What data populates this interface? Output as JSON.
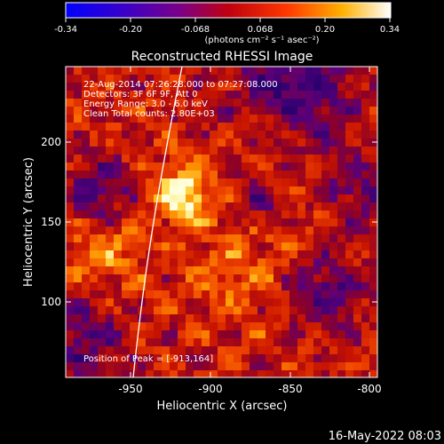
{
  "colorbar": {
    "ticks": [
      "-0.34",
      "-0.20",
      "-0.068",
      "0.068",
      "0.20",
      "0.34"
    ],
    "units": "(photons cm⁻² s⁻¹ asec⁻²)"
  },
  "plot": {
    "title": "Reconstructed RHESSI Image",
    "xlabel": "Heliocentric X (arcsec)",
    "ylabel": "Heliocentric Y (arcsec)",
    "x_ticks": [
      "-950",
      "-900",
      "-850",
      "-800"
    ],
    "y_ticks": [
      "100",
      "150",
      "200"
    ],
    "annotations": [
      "22-Aug-2014 07:26:28.000 to 07:27:08.000",
      "Detectors: 3F 6F 9F, Att 0",
      "Energy Range: 3.0 - 6.0 keV",
      "Clean     Total counts: 2.80E+03"
    ],
    "peak_label": "Position of Peak = [-913,164]"
  },
  "footer": {
    "timestamp": "16-May-2022 08:03"
  },
  "colors": {
    "background": "#000000",
    "text": "#ffffff",
    "limb_line": "#ffffff"
  }
}
